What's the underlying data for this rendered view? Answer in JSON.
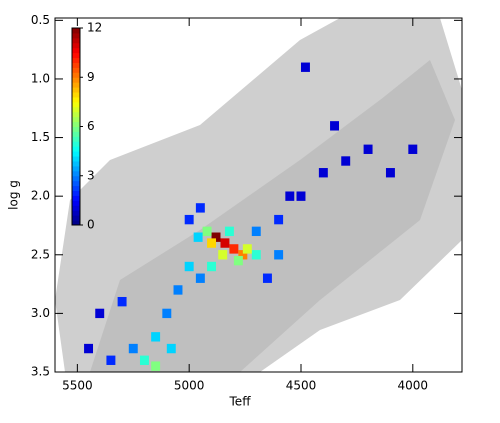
{
  "chart_data": {
    "type": "heatmap",
    "x_label": "Teff",
    "y_label": "log g",
    "xlim": [
      5600,
      3780
    ],
    "ylim": [
      3.5,
      0.48
    ],
    "xticks": [
      5500,
      5000,
      4500,
      4000
    ],
    "yticks": [
      {
        "value": 0.5,
        "label": "0.5"
      },
      {
        "value": 1.0,
        "label": "1.0"
      },
      {
        "value": 1.5,
        "label": "1.5"
      },
      {
        "value": 2.0,
        "label": "2.0"
      },
      {
        "value": 2.5,
        "label": "2.5"
      },
      {
        "value": 3.0,
        "label": "3.0"
      },
      {
        "value": 3.5,
        "label": "3.5"
      }
    ],
    "colorbar_lim": [
      0,
      12
    ],
    "colorbar_ticks": [
      0,
      3,
      6,
      9,
      12
    ],
    "cells": {
      "teff": [
        4880,
        4840,
        4800,
        4760,
        4900,
        4850,
        4920,
        4780,
        4700,
        4960,
        4820,
        4740,
        5150,
        5200,
        5100,
        5050,
        5000,
        5250,
        5350,
        5450,
        5150,
        5080,
        4600,
        4500,
        4400,
        4300,
        4200,
        4100,
        4000,
        4650,
        4550,
        4480,
        4350,
        5400,
        5300,
        4950,
        4700,
        4600,
        5000,
        4900,
        4950
      ],
      "logg": [
        2.35,
        2.4,
        2.45,
        2.5,
        2.4,
        2.5,
        2.3,
        2.55,
        2.5,
        2.35,
        2.3,
        2.45,
        3.2,
        3.4,
        3.0,
        2.8,
        2.6,
        3.3,
        3.4,
        3.3,
        3.45,
        3.3,
        2.2,
        2.0,
        1.8,
        1.7,
        1.6,
        1.8,
        1.6,
        2.7,
        2.0,
        0.9,
        1.4,
        3.0,
        2.9,
        2.1,
        2.3,
        2.5,
        2.2,
        2.6,
        2.7
      ],
      "count": [
        12,
        11,
        10,
        9,
        8,
        7,
        6,
        6,
        5,
        4,
        5,
        7,
        4,
        5,
        3,
        3,
        4,
        3,
        2,
        1,
        6,
        4,
        2,
        1,
        1,
        1,
        1,
        1,
        1,
        2,
        1,
        1,
        1,
        1,
        2,
        2,
        3,
        3,
        2,
        5,
        3
      ]
    }
  }
}
